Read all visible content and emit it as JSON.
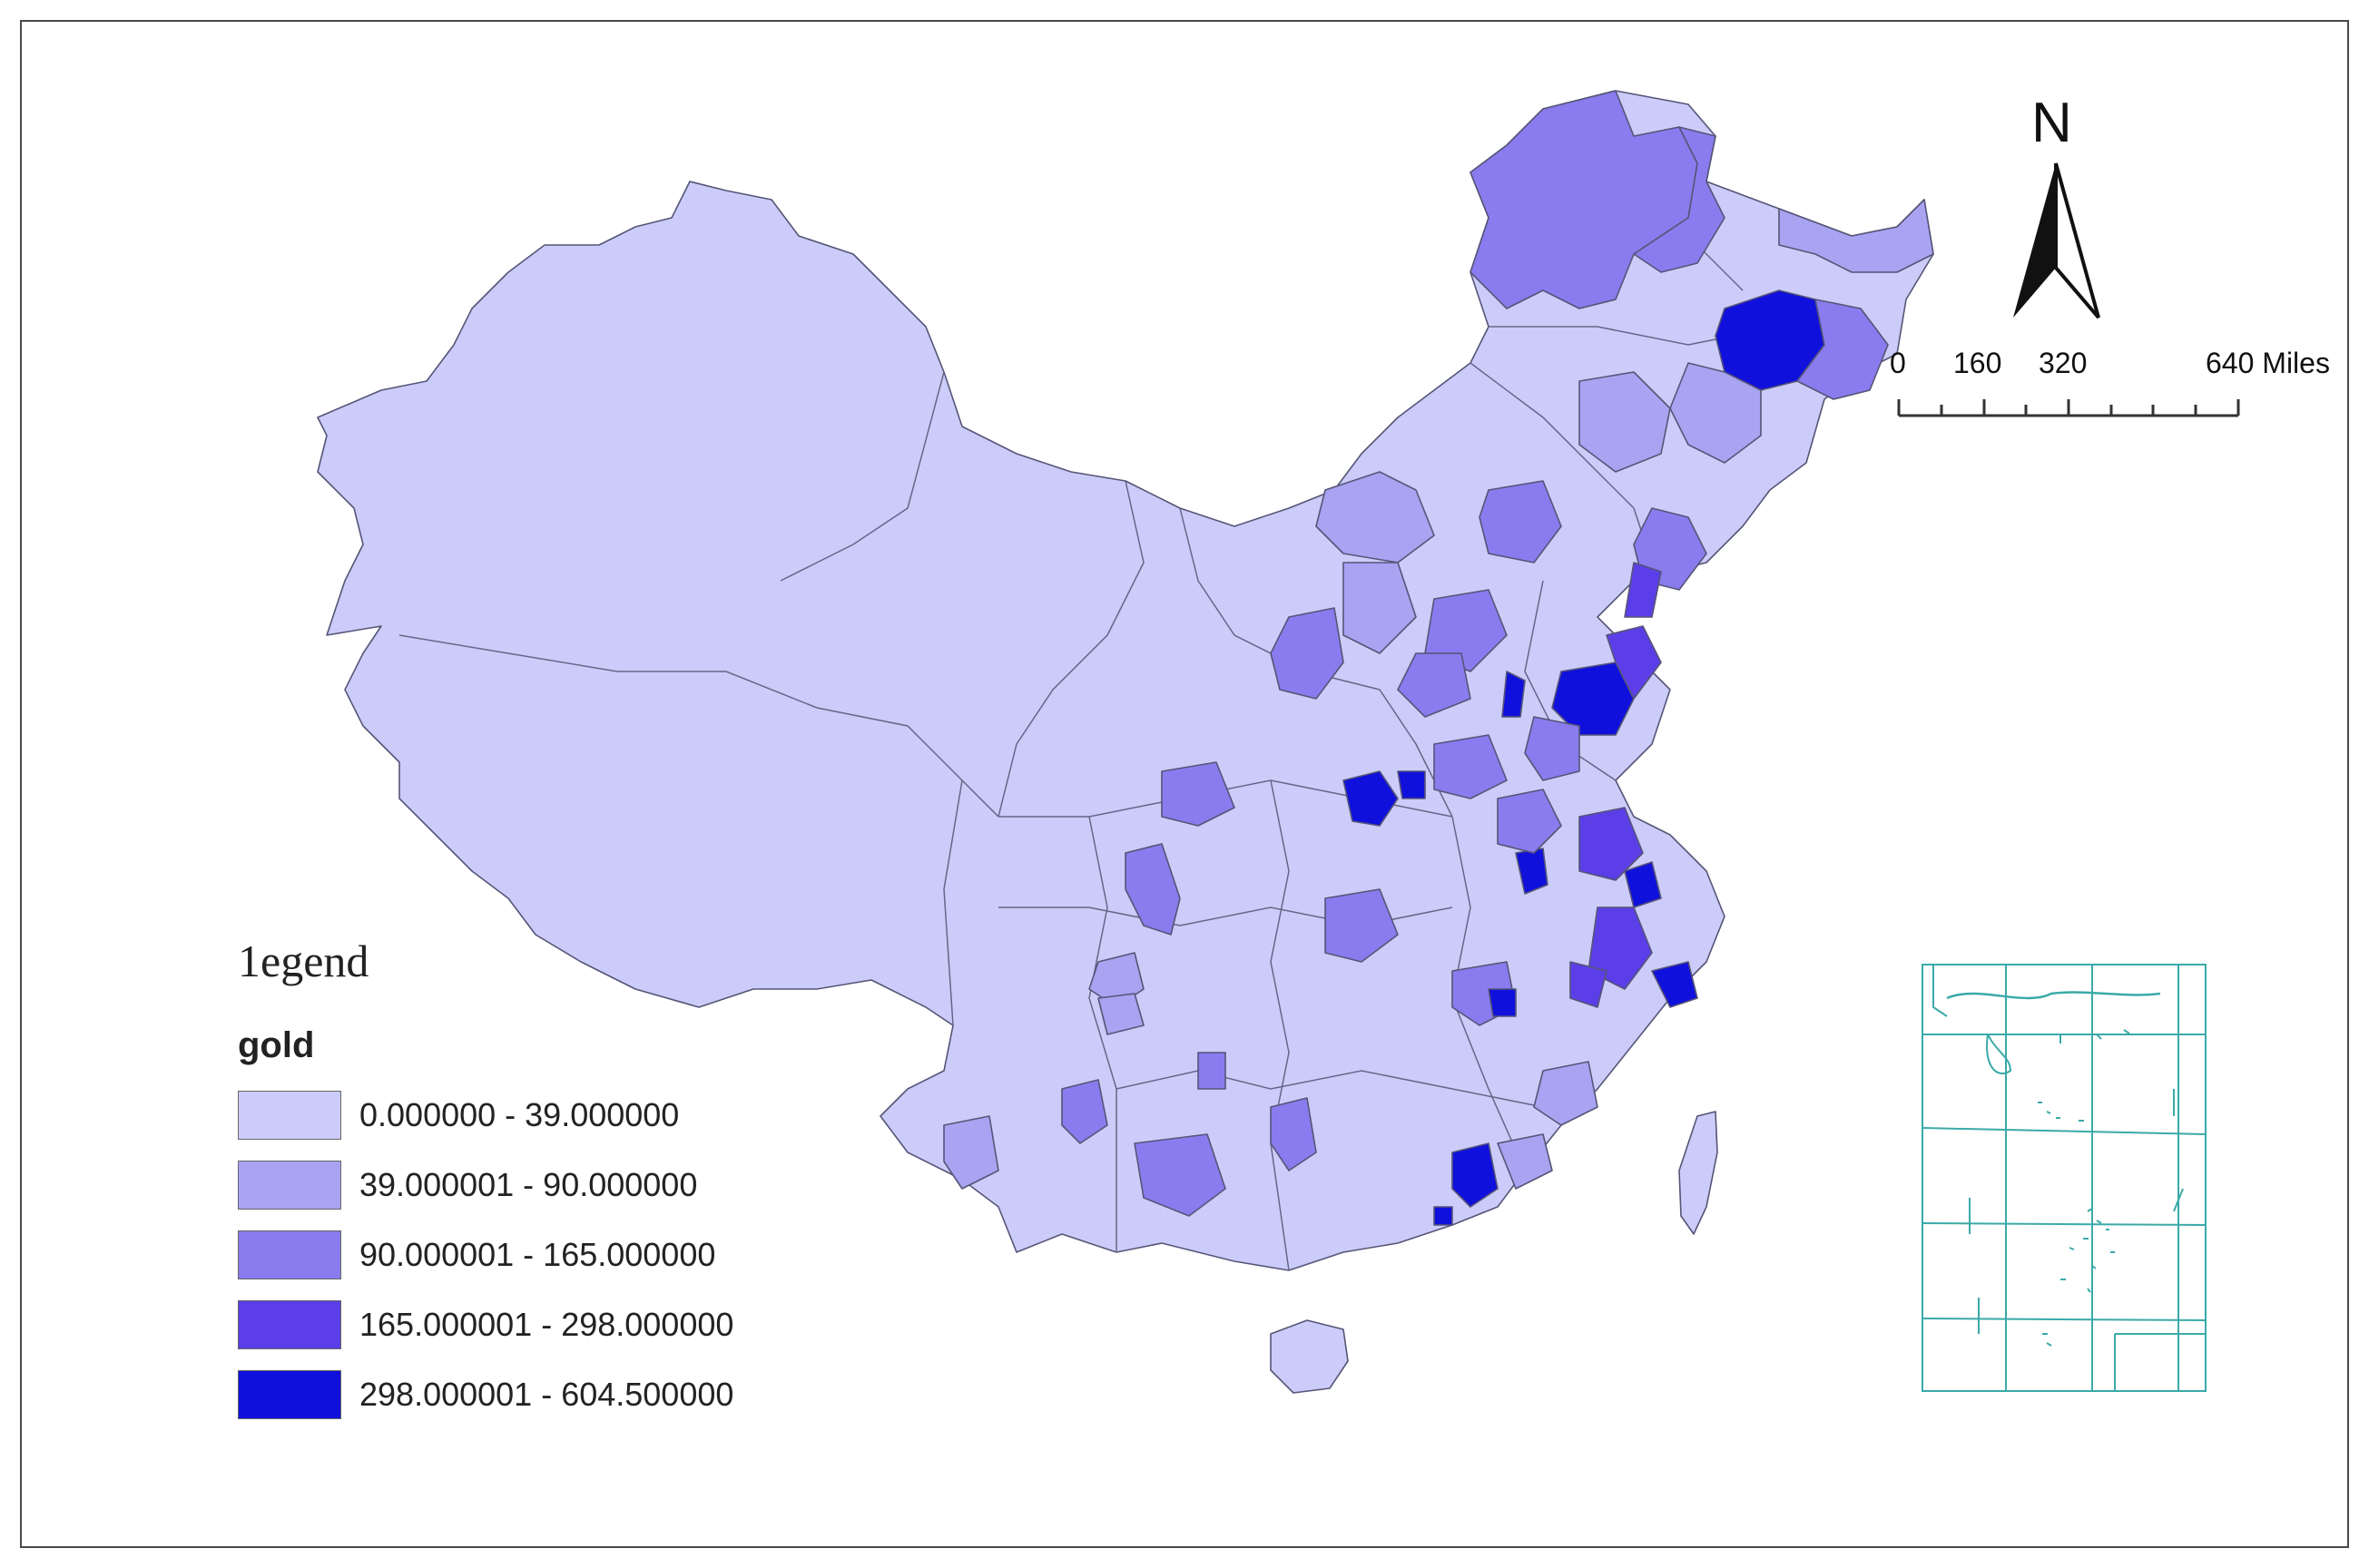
{
  "legend": {
    "title": "1egend",
    "field": "gold",
    "classes": [
      {
        "label": "0.000000 - 39.000000",
        "color": "#ccccfa"
      },
      {
        "label": "39.000001 - 90.000000",
        "color": "#a8a4f2"
      },
      {
        "label": "90.000001 - 165.000000",
        "color": "#8a7cee"
      },
      {
        "label": "165.000001 - 298.000000",
        "color": "#5c3ee8"
      },
      {
        "label": "298.000001 - 604.500000",
        "color": "#1010dc"
      }
    ]
  },
  "north_arrow": {
    "letter": "N"
  },
  "scale_bar": {
    "ticks": [
      "0",
      "160",
      "320",
      "640 Miles"
    ]
  },
  "inset": {
    "color": "#3aaaa8"
  }
}
